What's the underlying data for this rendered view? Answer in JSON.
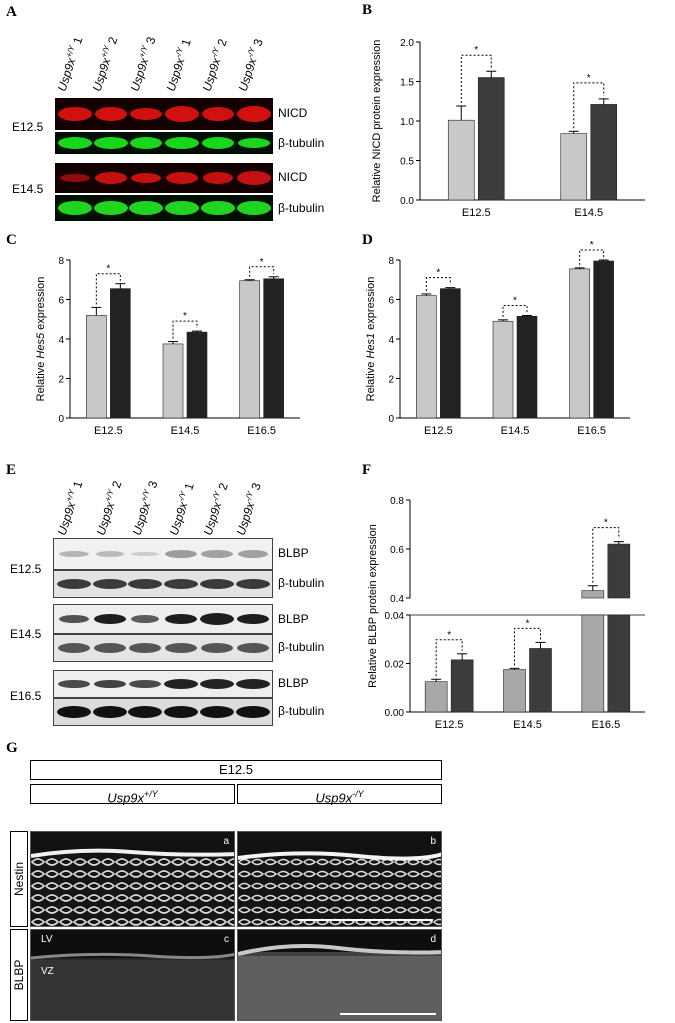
{
  "panels": {
    "A": {
      "letter": "A",
      "lanes": [
        "Usp9x+/Y 1",
        "Usp9x+/Y 2",
        "Usp9x+/Y 3",
        "Usp9x-/Y 1",
        "Usp9x-/Y 2",
        "Usp9x-/Y 3"
      ],
      "stages": [
        "E12.5",
        "E14.5"
      ],
      "bands": [
        "NICD",
        "β-tubulin",
        "NICD",
        "β-tubulin"
      ]
    },
    "B": {
      "letter": "B"
    },
    "C": {
      "letter": "C"
    },
    "D": {
      "letter": "D"
    },
    "E": {
      "letter": "E",
      "lanes": [
        "Usp9x+/Y 1",
        "Usp9x+/Y 2",
        "Usp9x+/Y 3",
        "Usp9x-/Y 1",
        "Usp9x-/Y 2",
        "Usp9x-/Y 3"
      ],
      "stages": [
        "E12.5",
        "E14.5",
        "E16.5"
      ],
      "bands": [
        "BLBP",
        "β-tubulin",
        "BLBP",
        "β-tubulin",
        "BLBP",
        "β-tubulin"
      ]
    },
    "F": {
      "letter": "F"
    },
    "G": {
      "letter": "G",
      "header": "E12.5",
      "col1": "Usp9x+/Y",
      "col2": "Usp9x-/Y",
      "row1": "Nestin",
      "row2": "BLBP",
      "tags": [
        "a",
        "b",
        "c",
        "d"
      ],
      "region_lv": "LV",
      "region_vz": "VZ"
    }
  },
  "chart_data": [
    {
      "panel": "B",
      "type": "bar",
      "ylabel": "Relative NICD protein expression",
      "categories": [
        "E12.5",
        "E14.5"
      ],
      "series": [
        {
          "values": [
            1.01,
            0.84
          ],
          "errors": [
            0.18,
            0.03
          ],
          "color": "#c8c8c8"
        },
        {
          "values": [
            1.55,
            1.21
          ],
          "errors": [
            0.08,
            0.07
          ],
          "color": "#3c3c3c"
        }
      ],
      "ylim": [
        0,
        2.0
      ],
      "yticks": [
        "0.0",
        "0.5",
        "1.0",
        "1.5",
        "2.0"
      ],
      "significance": [
        "*",
        "*"
      ]
    },
    {
      "panel": "C",
      "type": "bar",
      "ylabel": "Relative Hes5 expression",
      "categories": [
        "E12.5",
        "E14.5",
        "E16.5"
      ],
      "series": [
        {
          "values": [
            5.2,
            3.75,
            6.95
          ],
          "errors": [
            0.4,
            0.12,
            0.05
          ],
          "color": "#c8c8c8"
        },
        {
          "values": [
            6.55,
            4.35,
            7.05
          ],
          "errors": [
            0.25,
            0.05,
            0.1
          ],
          "color": "#222222"
        }
      ],
      "ylim": [
        0,
        8
      ],
      "yticks": [
        "0",
        "2",
        "4",
        "6",
        "8"
      ],
      "significance": [
        "*",
        "*",
        "*"
      ]
    },
    {
      "panel": "D",
      "type": "bar",
      "ylabel": "Relative Hes1 expression",
      "categories": [
        "E12.5",
        "E14.5",
        "E16.5"
      ],
      "series": [
        {
          "values": [
            6.2,
            4.9,
            7.55
          ],
          "errors": [
            0.08,
            0.07,
            0.05
          ],
          "color": "#c8c8c8"
        },
        {
          "values": [
            6.55,
            5.15,
            7.95
          ],
          "errors": [
            0.05,
            0.04,
            0.05
          ],
          "color": "#222222"
        }
      ],
      "ylim": [
        0,
        8
      ],
      "yticks": [
        "0",
        "2",
        "4",
        "6",
        "8"
      ],
      "significance": [
        "*",
        "*",
        "*"
      ]
    },
    {
      "panel": "F",
      "type": "bar",
      "ylabel": "Relative BLBP protein expression",
      "categories": [
        "E12.5",
        "E14.5",
        "E16.5"
      ],
      "series": [
        {
          "values": [
            0.0125,
            0.0175,
            0.43
          ],
          "errors": [
            0.001,
            0.0005,
            0.02
          ],
          "color": "#a8a8a8"
        },
        {
          "values": [
            0.0215,
            0.0262,
            0.62
          ],
          "errors": [
            0.0025,
            0.0025,
            0.01
          ],
          "color": "#3c3c3c"
        }
      ],
      "broken_axis": {
        "lower": [
          0,
          0.04
        ],
        "upper": [
          0.4,
          0.8
        ]
      },
      "yticks_lower": [
        "0.00",
        "0.02",
        "0.04"
      ],
      "yticks_upper": [
        "0.4",
        "0.6",
        "0.8"
      ],
      "significance": [
        "*",
        "*",
        "*"
      ]
    }
  ]
}
